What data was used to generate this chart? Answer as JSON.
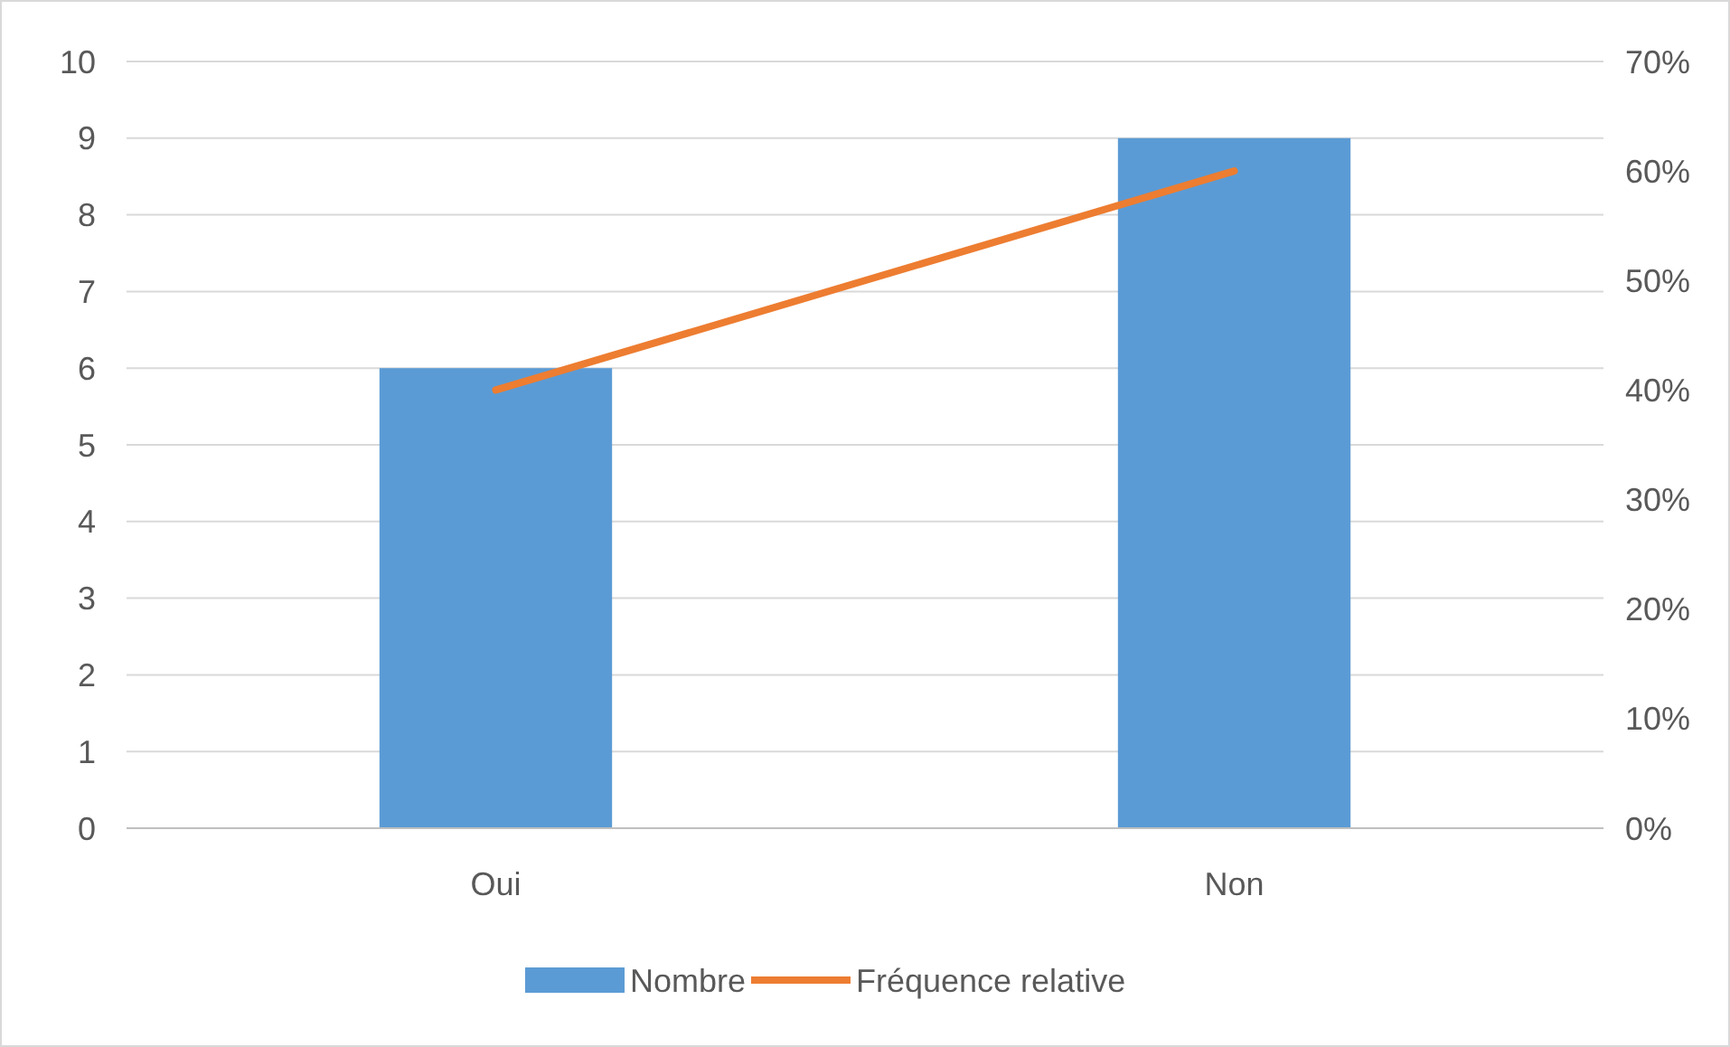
{
  "chart_data": {
    "type": "bar",
    "categories": [
      "Oui",
      "Non"
    ],
    "series": [
      {
        "name": "Nombre",
        "color": "#5b9bd5",
        "values": [
          6,
          9
        ]
      },
      {
        "name": "Fréquence relative",
        "type": "line",
        "axis": "y2",
        "color": "#ed7d31",
        "values": [
          40,
          60
        ]
      }
    ],
    "ylim": [
      0,
      10
    ],
    "yticks": [
      0,
      1,
      2,
      3,
      4,
      5,
      6,
      7,
      8,
      9,
      10
    ],
    "y2lim": [
      0,
      70
    ],
    "y2ticks": [
      {
        "value": 0,
        "label": "0%"
      },
      {
        "value": 10,
        "label": "10%"
      },
      {
        "value": 20,
        "label": "20%"
      },
      {
        "value": 30,
        "label": "30%"
      },
      {
        "value": 40,
        "label": "40%"
      },
      {
        "value": 50,
        "label": "50%"
      },
      {
        "value": 60,
        "label": "60%"
      },
      {
        "value": 70,
        "label": "70%"
      }
    ],
    "grid": "y",
    "legend": "bottom",
    "marker": "none"
  }
}
